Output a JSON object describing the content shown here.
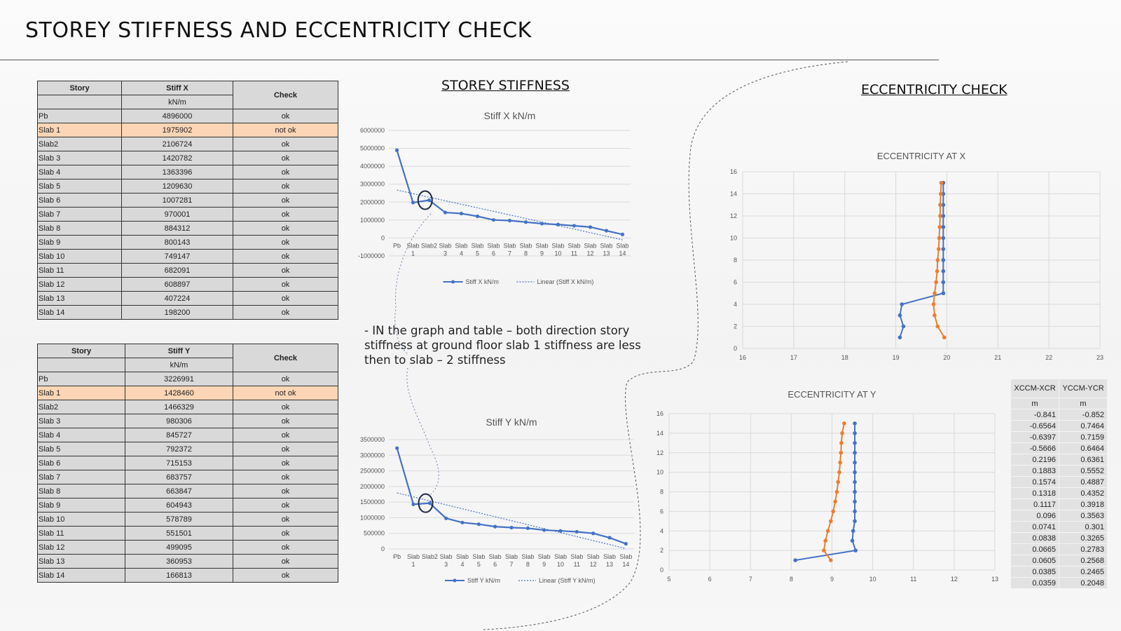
{
  "page": {
    "title": "STOREY STIFFNESS AND ECCENTRICITY CHECK",
    "section_stiffness": "STOREY STIFFNESS",
    "section_eccentricity": "ECCENTRICITY CHECK",
    "note": "- IN the graph and table – both direction story stiffness at ground floor slab 1 stiffness are less then to slab – 2 stiffness"
  },
  "table_x": {
    "headers": {
      "story": "Story",
      "stiff": "Stiff X",
      "unit": "kN/m",
      "check": "Check"
    },
    "rows": [
      {
        "story": "Pb",
        "value": "4896000",
        "check": "ok"
      },
      {
        "story": "Slab 1",
        "value": "1975902",
        "check": "not ok"
      },
      {
        "story": "Slab2",
        "value": "2106724",
        "check": "ok"
      },
      {
        "story": "Slab 3",
        "value": "1420782",
        "check": "ok"
      },
      {
        "story": "Slab 4",
        "value": "1363396",
        "check": "ok"
      },
      {
        "story": "Slab 5",
        "value": "1209630",
        "check": "ok"
      },
      {
        "story": "Slab 6",
        "value": "1007281",
        "check": "ok"
      },
      {
        "story": "Slab 7",
        "value": "970001",
        "check": "ok"
      },
      {
        "story": "Slab 8",
        "value": "884312",
        "check": "ok"
      },
      {
        "story": "Slab 9",
        "value": "800143",
        "check": "ok"
      },
      {
        "story": "Slab 10",
        "value": "749147",
        "check": "ok"
      },
      {
        "story": "Slab 11",
        "value": "682091",
        "check": "ok"
      },
      {
        "story": "Slab 12",
        "value": "608897",
        "check": "ok"
      },
      {
        "story": "Slab 13",
        "value": "407224",
        "check": "ok"
      },
      {
        "story": "Slab 14",
        "value": "198200",
        "check": "ok"
      }
    ]
  },
  "table_y": {
    "headers": {
      "story": "Story",
      "stiff": "Stiff Y",
      "unit": "kN/m",
      "check": "Check"
    },
    "rows": [
      {
        "story": "Pb",
        "value": "3226991",
        "check": "ok"
      },
      {
        "story": "Slab 1",
        "value": "1428460",
        "check": "not ok"
      },
      {
        "story": "Slab2",
        "value": "1466329",
        "check": "ok"
      },
      {
        "story": "Slab 3",
        "value": "980306",
        "check": "ok"
      },
      {
        "story": "Slab 4",
        "value": "845727",
        "check": "ok"
      },
      {
        "story": "Slab 5",
        "value": "792372",
        "check": "ok"
      },
      {
        "story": "Slab 6",
        "value": "715153",
        "check": "ok"
      },
      {
        "story": "Slab 7",
        "value": "683757",
        "check": "ok"
      },
      {
        "story": "Slab 8",
        "value": "663847",
        "check": "ok"
      },
      {
        "story": "Slab 9",
        "value": "604943",
        "check": "ok"
      },
      {
        "story": "Slab 10",
        "value": "578789",
        "check": "ok"
      },
      {
        "story": "Slab 11",
        "value": "551501",
        "check": "ok"
      },
      {
        "story": "Slab 12",
        "value": "499095",
        "check": "ok"
      },
      {
        "story": "Slab 13",
        "value": "360953",
        "check": "ok"
      },
      {
        "story": "Slab 14",
        "value": "166813",
        "check": "ok"
      }
    ]
  },
  "ecc_table": {
    "headers": [
      "XCCM-XCR",
      "YCCM-YCR"
    ],
    "units": [
      "m",
      "m"
    ],
    "rows": [
      [
        "-0.841",
        "-0.852"
      ],
      [
        "-0.6564",
        "0.7464"
      ],
      [
        "-0.6397",
        "0.7159"
      ],
      [
        "-0.5666",
        "0.6464"
      ],
      [
        "0.2196",
        "0.6361"
      ],
      [
        "0.1883",
        "0.5552"
      ],
      [
        "0.1574",
        "0.4887"
      ],
      [
        "0.1318",
        "0.4352"
      ],
      [
        "0.1117",
        "0.3918"
      ],
      [
        "0.096",
        "0.3563"
      ],
      [
        "0.0741",
        "0.301"
      ],
      [
        "0.0838",
        "0.3265"
      ],
      [
        "0.0665",
        "0.2783"
      ],
      [
        "0.0605",
        "0.2568"
      ],
      [
        "0.0385",
        "0.2465"
      ],
      [
        "0.0359",
        "0.2048"
      ]
    ]
  },
  "colors": {
    "blue": "#4472c4",
    "orange": "#ed7d31",
    "highlight": "#fbd5b5",
    "grid": "#d9d9d9"
  },
  "chart_data": [
    {
      "type": "line",
      "title": "Stiff X kN/m",
      "categories": [
        "Pb",
        "Slab\n1",
        "Slab2",
        "Slab\n3",
        "Slab\n4",
        "Slab\n5",
        "Slab\n6",
        "Slab\n7",
        "Slab\n8",
        "Slab\n9",
        "Slab\n10",
        "Slab\n11",
        "Slab\n12",
        "Slab\n13",
        "Slab\n14"
      ],
      "series": [
        {
          "name": "Stiff X kN/m",
          "values": [
            4896000,
            1975902,
            2106724,
            1420782,
            1363396,
            1209630,
            1007281,
            970001,
            884312,
            800143,
            749147,
            682091,
            608897,
            407224,
            198200
          ]
        }
      ],
      "trendline": {
        "name": "Linear (Stiff X kN/m)",
        "type": "linear"
      },
      "ylim": [
        -1000000,
        6000000
      ],
      "yticks": [
        -1000000,
        0,
        1000000,
        2000000,
        3000000,
        4000000,
        5000000,
        6000000
      ],
      "grid": true,
      "legend": "bottom"
    },
    {
      "type": "line",
      "title": "Stiff Y kN/m",
      "categories": [
        "Pb",
        "Slab\n1",
        "Slab2",
        "Slab\n3",
        "Slab\n4",
        "Slab\n5",
        "Slab\n6",
        "Slab\n7",
        "Slab\n8",
        "Slab\n9",
        "Slab\n10",
        "Slab\n11",
        "Slab\n12",
        "Slab\n13",
        "Slab\n14"
      ],
      "series": [
        {
          "name": "Stiff Y kN/m",
          "values": [
            3226991,
            1428460,
            1466329,
            980306,
            845727,
            792372,
            715153,
            683757,
            663847,
            604943,
            578789,
            551501,
            499095,
            360953,
            166813
          ]
        }
      ],
      "trendline": {
        "name": "Linear (Stiff Y kN/m)",
        "type": "linear"
      },
      "ylim": [
        0,
        3500000
      ],
      "yticks": [
        0,
        500000,
        1000000,
        1500000,
        2000000,
        2500000,
        3000000,
        3500000
      ],
      "grid": true,
      "legend": "bottom"
    },
    {
      "type": "scatter",
      "title": "ECCENTRICITY AT X",
      "xlim": [
        16,
        23
      ],
      "xticks": [
        16,
        17,
        18,
        19,
        20,
        21,
        22,
        23
      ],
      "ylim": [
        0,
        16
      ],
      "yticks": [
        0,
        2,
        4,
        6,
        8,
        10,
        12,
        14,
        16
      ],
      "grid": true,
      "series": [
        {
          "color": "blue",
          "points": [
            [
              19.08,
              1
            ],
            [
              19.15,
              2
            ],
            [
              19.08,
              3
            ],
            [
              19.12,
              4
            ],
            [
              19.93,
              5
            ],
            [
              19.93,
              6
            ],
            [
              19.93,
              7
            ],
            [
              19.93,
              8
            ],
            [
              19.93,
              9
            ],
            [
              19.93,
              10
            ],
            [
              19.93,
              11
            ],
            [
              19.93,
              12
            ],
            [
              19.93,
              13
            ],
            [
              19.93,
              14
            ],
            [
              19.93,
              15
            ]
          ]
        },
        {
          "color": "orange",
          "points": [
            [
              19.95,
              1
            ],
            [
              19.82,
              2
            ],
            [
              19.76,
              3
            ],
            [
              19.74,
              4
            ],
            [
              19.76,
              5
            ],
            [
              19.79,
              6
            ],
            [
              19.81,
              7
            ],
            [
              19.82,
              8
            ],
            [
              19.84,
              9
            ],
            [
              19.85,
              10
            ],
            [
              19.86,
              11
            ],
            [
              19.87,
              12
            ],
            [
              19.87,
              13
            ],
            [
              19.88,
              14
            ],
            [
              19.89,
              15
            ]
          ]
        }
      ]
    },
    {
      "type": "scatter",
      "title": "ECCENTRICITY AT Y",
      "xlim": [
        5,
        13
      ],
      "xticks": [
        5,
        6,
        7,
        8,
        9,
        10,
        11,
        12,
        13
      ],
      "ylim": [
        0,
        16
      ],
      "yticks": [
        0,
        2,
        4,
        6,
        8,
        10,
        12,
        14,
        16
      ],
      "grid": true,
      "series": [
        {
          "color": "blue",
          "points": [
            [
              8.1,
              1
            ],
            [
              9.58,
              2
            ],
            [
              9.5,
              3
            ],
            [
              9.52,
              4
            ],
            [
              9.56,
              5
            ],
            [
              9.56,
              6
            ],
            [
              9.56,
              7
            ],
            [
              9.56,
              8
            ],
            [
              9.56,
              9
            ],
            [
              9.56,
              10
            ],
            [
              9.56,
              11
            ],
            [
              9.56,
              12
            ],
            [
              9.56,
              13
            ],
            [
              9.56,
              14
            ],
            [
              9.56,
              15
            ]
          ]
        },
        {
          "color": "orange",
          "points": [
            [
              8.97,
              1
            ],
            [
              8.8,
              2
            ],
            [
              8.84,
              3
            ],
            [
              8.9,
              4
            ],
            [
              8.97,
              5
            ],
            [
              9.03,
              6
            ],
            [
              9.08,
              7
            ],
            [
              9.12,
              8
            ],
            [
              9.15,
              9
            ],
            [
              9.18,
              10
            ],
            [
              9.2,
              11
            ],
            [
              9.22,
              12
            ],
            [
              9.23,
              13
            ],
            [
              9.25,
              14
            ],
            [
              9.3,
              15
            ]
          ]
        }
      ]
    }
  ]
}
